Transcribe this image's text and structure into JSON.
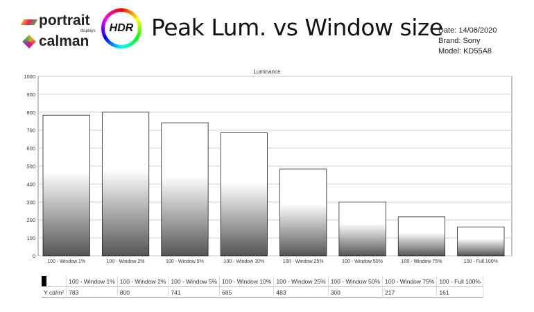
{
  "header": {
    "logo_portrait": "portrait",
    "logo_displays": "displays",
    "logo_calman": "calman",
    "hdr_badge": "HDR",
    "title": "Peak Lum. vs Window size",
    "date": "Date: 14/06/2020",
    "brand": "Brand: Sony",
    "model": "Model: KD55A8"
  },
  "chart_data": {
    "type": "bar",
    "title": "Luminance",
    "categories": [
      "100 - Window  1%",
      "100 - Window  2%",
      "100 - Window  5%",
      "100 - Window 10%",
      "100 - Window 25%",
      "100 - Window 50%",
      "100 - Window 75%",
      "100 - Full  100%"
    ],
    "values": [
      783,
      800,
      741,
      685,
      483,
      300,
      217,
      161
    ],
    "ylim": [
      0,
      1000
    ],
    "yticks": [
      "0",
      "100",
      "200",
      "300",
      "400",
      "500",
      "600",
      "700",
      "800",
      "900",
      "1000"
    ],
    "grid": true
  },
  "table": {
    "row_label": "Y cd/m²",
    "values": [
      "783",
      "800",
      "741",
      "685",
      "483",
      "300",
      "217",
      "161"
    ]
  }
}
